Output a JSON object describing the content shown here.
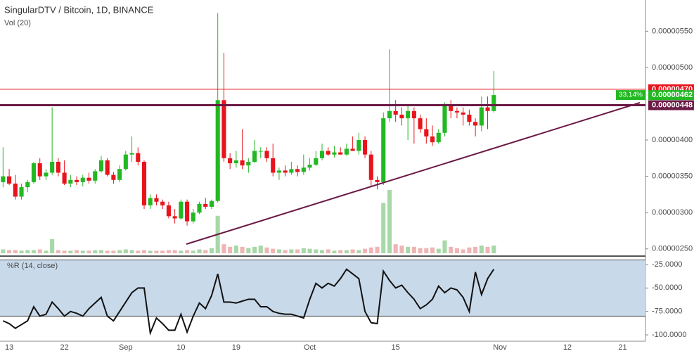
{
  "chart_data": [
    {
      "type": "candlestick",
      "title": "SingularDTV / Bitcoin, 1D, BINANCE",
      "subtitle": "Vol (20)",
      "categories": [
        null,
        "13",
        null,
        null,
        null,
        null,
        null,
        null,
        null,
        null,
        "22",
        null,
        null,
        null,
        null,
        null,
        null,
        null,
        null,
        null,
        "Sep",
        null,
        null,
        null,
        null,
        null,
        null,
        null,
        null,
        "10",
        null,
        null,
        null,
        null,
        null,
        null,
        null,
        null,
        "19",
        null,
        null,
        null,
        null,
        null,
        null,
        null,
        null,
        null,
        null,
        null,
        "Oct",
        null,
        null,
        null,
        null,
        null,
        null,
        null,
        null,
        null,
        null,
        null,
        null,
        null,
        "15",
        null,
        null,
        null,
        null,
        null,
        null,
        null,
        null,
        null,
        null,
        null,
        null,
        null,
        null,
        null,
        null,
        "Nov",
        null,
        null,
        null,
        null,
        null,
        null,
        null,
        null,
        null,
        null,
        "12",
        null,
        null,
        null,
        null,
        null,
        null,
        null,
        null,
        "21",
        null,
        null,
        null
      ],
      "open": [
        3.42e-06,
        3.5e-06,
        3.4e-06,
        3.22e-06,
        3.35e-06,
        3.42e-06,
        3.68e-06,
        3.5e-06,
        3.55e-06,
        3.7e-06,
        3.55e-06,
        3.4e-06,
        3.45e-06,
        3.42e-06,
        3.48e-06,
        3.44e-06,
        3.57e-06,
        3.72e-06,
        3.52e-06,
        3.45e-06,
        3.6e-06,
        3.8e-06,
        3.82e-06,
        3.7e-06,
        3.1e-06,
        3.2e-06,
        3.15e-06,
        3.1e-06,
        2.95e-06,
        2.92e-06,
        3.15e-06,
        2.88e-06,
        3e-06,
        3.12e-06,
        3.08e-06,
        3.16e-06,
        4.55e-06,
        3.75e-06,
        3.68e-06,
        3.72e-06,
        3.65e-06,
        3.7e-06,
        3.85e-06,
        3.85e-06,
        3.75e-06,
        3.55e-06,
        3.58e-06,
        3.55e-06,
        3.6e-06,
        3.56e-06,
        3.62e-06,
        3.66e-06,
        3.75e-06,
        3.85e-06,
        3.8e-06,
        3.83e-06,
        3.8e-06,
        3.88e-06,
        3.85e-06,
        4e-06,
        3.8e-06,
        3.45e-06,
        3.42e-06,
        4.3e-06,
        4.4e-06,
        4.35e-06,
        4.3e-06,
        4.4e-06,
        4.3e-06,
        4.15e-06,
        4.05e-06,
        3.97e-06,
        4.1e-06,
        4.48e-06,
        4.4e-06,
        4.38e-06,
        4.35e-06,
        4.25e-06,
        4.2e-06,
        4.45e-06,
        4.4e-06,
        null,
        null,
        null,
        null,
        null,
        null,
        null,
        null,
        null,
        null,
        null,
        null,
        null,
        null,
        null,
        null,
        null,
        null,
        null,
        null,
        null,
        null,
        null,
        null
      ],
      "high": [
        3.9e-06,
        3.6e-06,
        3.52e-06,
        3.4e-06,
        3.45e-06,
        3.7e-06,
        3.75e-06,
        3.6e-06,
        4.45e-06,
        3.75e-06,
        3.72e-06,
        3.52e-06,
        3.5e-06,
        3.52e-06,
        3.55e-06,
        3.6e-06,
        3.78e-06,
        3.75e-06,
        3.56e-06,
        3.65e-06,
        3.85e-06,
        4.05e-06,
        3.9e-06,
        3.72e-06,
        3.25e-06,
        3.25e-06,
        3.18e-06,
        3.15e-06,
        3.05e-06,
        3.18e-06,
        3.18e-06,
        3.05e-06,
        3.15e-06,
        3.2e-06,
        3.18e-06,
        5.75e-06,
        5.2e-06,
        3.82e-06,
        3.85e-06,
        4.15e-06,
        3.75e-06,
        4e-06,
        3.9e-06,
        3.9e-06,
        3.95e-06,
        3.62e-06,
        3.65e-06,
        3.7e-06,
        3.65e-06,
        3.8e-06,
        3.75e-06,
        3.85e-06,
        3.95e-06,
        3.9e-06,
        3.92e-06,
        3.9e-06,
        3.95e-06,
        4.05e-06,
        4.1e-06,
        4.05e-06,
        3.85e-06,
        3.5e-06,
        4.38e-06,
        5.25e-06,
        4.55e-06,
        4.45e-06,
        4.5e-06,
        4.45e-06,
        4.35e-06,
        4.3e-06,
        4.2e-06,
        4.15e-06,
        4.52e-06,
        4.55e-06,
        4.45e-06,
        4.45e-06,
        4.42e-06,
        4.3e-06,
        4.6e-06,
        4.6e-06,
        4.95e-06,
        null,
        null,
        null,
        null,
        null,
        null,
        null,
        null,
        null,
        null,
        null,
        null,
        null,
        null,
        null,
        null,
        null,
        null,
        null,
        null,
        null,
        null,
        null,
        null
      ],
      "low": [
        3.35e-06,
        3.38e-06,
        3.18e-06,
        3.18e-06,
        3.28e-06,
        3.4e-06,
        3.45e-06,
        3.45e-06,
        3.52e-06,
        3.5e-06,
        3.38e-06,
        3.35e-06,
        3.38e-06,
        3.36e-06,
        3.4e-06,
        3.4e-06,
        3.55e-06,
        3.5e-06,
        3.4e-06,
        3.42e-06,
        3.58e-06,
        3.7e-06,
        3.65e-06,
        3.05e-06,
        3.05e-06,
        3.1e-06,
        3.05e-06,
        2.92e-06,
        2.85e-06,
        2.9e-06,
        2.82e-06,
        2.85e-06,
        2.98e-06,
        3.05e-06,
        3.05e-06,
        3.14e-06,
        3.7e-06,
        3.6e-06,
        3.62e-06,
        3.6e-06,
        3.55e-06,
        3.68e-06,
        3.75e-06,
        3.7e-06,
        3.5e-06,
        3.45e-06,
        3.5e-06,
        3.52e-06,
        3.5e-06,
        3.52e-06,
        3.58e-06,
        3.64e-06,
        3.72e-06,
        3.78e-06,
        3.76e-06,
        3.8e-06,
        3.78e-06,
        3.85e-06,
        3.8e-06,
        3.75e-06,
        3.35e-06,
        3.32e-06,
        3.38e-06,
        4.25e-06,
        4.25e-06,
        4.2e-06,
        4e-06,
        3.95e-06,
        4.1e-06,
        3.95e-06,
        3.92e-06,
        3.95e-06,
        4.05e-06,
        4.3e-06,
        4.3e-06,
        4.2e-06,
        4.2e-06,
        4.05e-06,
        4.12e-06,
        4.15e-06,
        4.38e-06,
        null,
        null,
        null,
        null,
        null,
        null,
        null,
        null,
        null,
        null,
        null,
        null,
        null,
        null,
        null,
        null,
        null,
        null,
        null,
        null,
        null,
        null,
        null,
        null
      ],
      "close": [
        3.5e-06,
        3.4e-06,
        3.22e-06,
        3.35e-06,
        3.42e-06,
        3.68e-06,
        3.5e-06,
        3.55e-06,
        3.7e-06,
        3.55e-06,
        3.4e-06,
        3.45e-06,
        3.42e-06,
        3.48e-06,
        3.44e-06,
        3.57e-06,
        3.72e-06,
        3.52e-06,
        3.45e-06,
        3.6e-06,
        3.8e-06,
        3.82e-06,
        3.7e-06,
        3.1e-06,
        3.2e-06,
        3.15e-06,
        3.1e-06,
        2.95e-06,
        2.92e-06,
        3.15e-06,
        2.88e-06,
        3e-06,
        3.12e-06,
        3.08e-06,
        3.16e-06,
        4.55e-06,
        3.75e-06,
        3.68e-06,
        3.72e-06,
        3.65e-06,
        3.7e-06,
        3.85e-06,
        3.85e-06,
        3.75e-06,
        3.55e-06,
        3.58e-06,
        3.55e-06,
        3.6e-06,
        3.56e-06,
        3.62e-06,
        3.66e-06,
        3.75e-06,
        3.85e-06,
        3.8e-06,
        3.83e-06,
        3.8e-06,
        3.88e-06,
        3.85e-06,
        4e-06,
        3.8e-06,
        3.45e-06,
        3.42e-06,
        4.3e-06,
        4.4e-06,
        4.35e-06,
        4.3e-06,
        4.4e-06,
        4.3e-06,
        4.15e-06,
        4.05e-06,
        3.97e-06,
        4.1e-06,
        4.48e-06,
        4.4e-06,
        4.38e-06,
        4.35e-06,
        4.25e-06,
        4.2e-06,
        4.45e-06,
        4.4e-06,
        4.62e-06,
        null,
        null,
        null,
        null,
        null,
        null,
        null,
        null,
        null,
        null,
        null,
        null,
        null,
        null,
        null,
        null,
        null,
        null,
        null,
        null,
        null,
        null,
        null,
        null
      ],
      "volume": [
        6,
        5,
        5,
        4,
        5,
        5,
        6,
        4,
        22,
        5,
        4,
        4,
        5,
        4,
        4,
        5,
        5,
        4,
        4,
        5,
        6,
        5,
        4,
        5,
        4,
        4,
        4,
        5,
        5,
        4,
        5,
        4,
        6,
        5,
        8,
        58,
        14,
        10,
        12,
        10,
        8,
        10,
        12,
        9,
        7,
        6,
        5,
        6,
        6,
        8,
        7,
        6,
        5,
        6,
        4,
        5,
        5,
        6,
        5,
        7,
        9,
        10,
        78,
        98,
        14,
        12,
        10,
        10,
        8,
        8,
        9,
        7,
        20,
        10,
        8,
        6,
        9,
        10,
        12,
        10,
        12,
        null,
        null,
        null,
        null,
        null,
        null,
        null,
        null,
        null,
        null,
        null,
        null,
        null,
        null,
        null,
        null,
        null,
        null,
        null,
        null,
        null,
        null,
        null,
        null
      ],
      "up_color": "#22b822",
      "down_color": "#e8141c",
      "volume_up_color": "#a8d8a8",
      "volume_down_color": "#efb5b5",
      "ylim": [
        2.42e-06,
        5.93e-06
      ],
      "yticks": [
        {
          "value": 5.5e-06,
          "label": "0.00000550"
        },
        {
          "value": 5e-06,
          "label": "0.00000500"
        },
        {
          "value": 4e-06,
          "label": "0.00000400"
        },
        {
          "value": 3.5e-06,
          "label": "0.00000350"
        },
        {
          "value": 3e-06,
          "label": "0.00000300"
        },
        {
          "value": 2.5e-06,
          "label": "0.00000250"
        }
      ],
      "levels": [
        {
          "value": 4.7e-06,
          "label": "0.00000470",
          "color": "#e8141c",
          "line_width": 1
        },
        {
          "value": 4.62e-06,
          "label": "0.00000462",
          "color": "#22b822",
          "line_width": 0
        },
        {
          "value": 4.48e-06,
          "label": "0.00000448",
          "color": "#6b1a45",
          "line_width": 3
        }
      ],
      "annotation": "33.14%"
    },
    {
      "type": "line",
      "title": "%R (14, close)",
      "color": "#111111",
      "band": [
        -80,
        -20
      ],
      "band_color": "#c8d9ea",
      "values": [
        -85,
        -88,
        -93,
        -89,
        -85,
        -70,
        -80,
        -78,
        -65,
        -72,
        -80,
        -75,
        -77,
        -80,
        -72,
        -66,
        -60,
        -80,
        -85,
        -75,
        -65,
        -55,
        -50,
        -50,
        -98,
        -82,
        -88,
        -95,
        -95,
        -78,
        -97,
        -80,
        -66,
        -72,
        -58,
        -35,
        -65,
        -65,
        -66,
        -64,
        -62,
        -62,
        -70,
        -70,
        -75,
        -77,
        -78,
        -78,
        -80,
        -82,
        -62,
        -45,
        -50,
        -45,
        -48,
        -40,
        -30,
        -35,
        -40,
        -75,
        -87,
        -88,
        -32,
        -42,
        -50,
        -47,
        -55,
        -62,
        -72,
        -68,
        -62,
        -48,
        -55,
        -50,
        -52,
        -60,
        -75,
        -33,
        -57,
        -40,
        -30,
        null,
        null,
        null,
        null,
        null,
        null,
        null,
        null,
        null,
        null,
        null,
        null,
        null,
        null,
        null,
        null,
        null,
        null,
        null,
        null,
        null,
        null,
        null,
        null
      ],
      "ylim": [
        -106,
        -19
      ],
      "yticks": [
        {
          "value": -25,
          "label": "-25.0000"
        },
        {
          "value": -50,
          "label": "-50.0000"
        },
        {
          "value": -75,
          "label": "-75.0000"
        },
        {
          "value": -100,
          "label": "-100.0000"
        }
      ]
    }
  ]
}
